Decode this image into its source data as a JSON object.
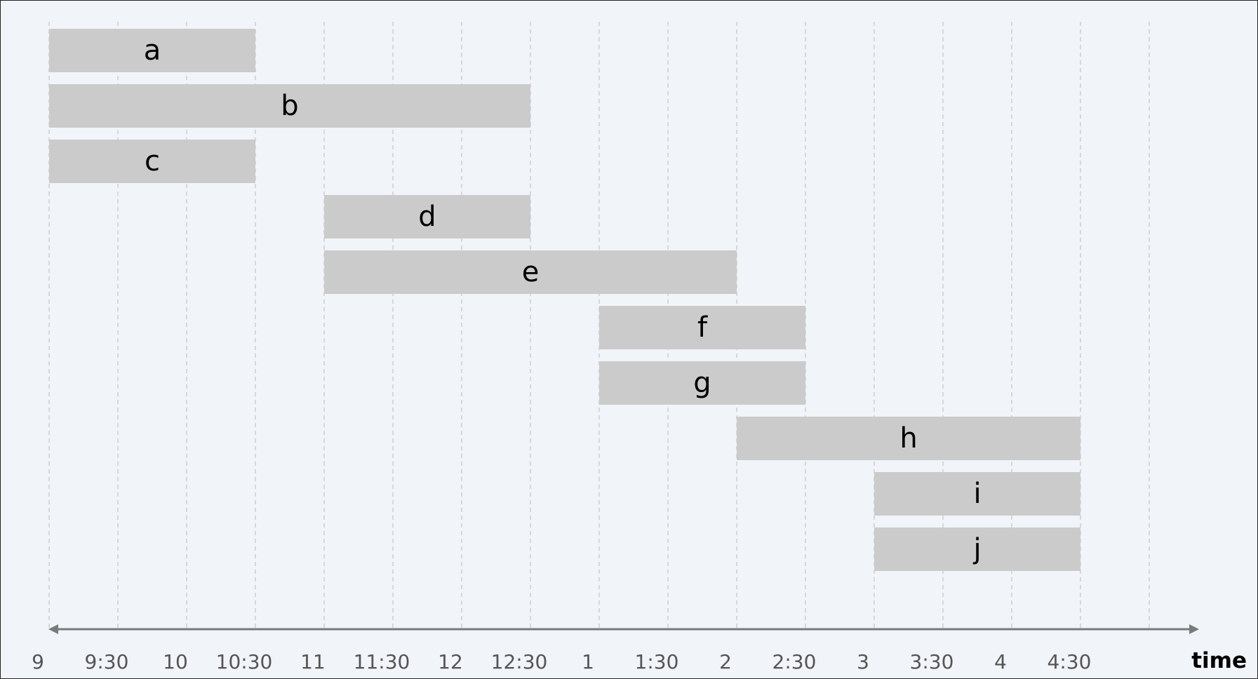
{
  "chart_data": {
    "type": "gantt",
    "axis_label": "time",
    "ticks": [
      "9",
      "9:30",
      "10",
      "10:30",
      "11",
      "11:30",
      "12",
      "12:30",
      "1",
      "1:30",
      "2",
      "2:30",
      "3",
      "3:30",
      "4",
      "4:30"
    ],
    "grid": true,
    "intervals": [
      {
        "label": "a",
        "start": "9:00",
        "end": "10:30"
      },
      {
        "label": "b",
        "start": "9:00",
        "end": "12:30"
      },
      {
        "label": "c",
        "start": "9:00",
        "end": "10:30"
      },
      {
        "label": "d",
        "start": "11:00",
        "end": "12:30"
      },
      {
        "label": "e",
        "start": "11:00",
        "end": "2:00"
      },
      {
        "label": "f",
        "start": "1:00",
        "end": "2:30"
      },
      {
        "label": "g",
        "start": "1:00",
        "end": "2:30"
      },
      {
        "label": "h",
        "start": "2:00",
        "end": "4:30"
      },
      {
        "label": "i",
        "start": "3:00",
        "end": "4:30"
      },
      {
        "label": "j",
        "start": "3:00",
        "end": "4:30"
      }
    ],
    "colors": {
      "bar": "#cbcbcb",
      "background": "#f1f4f8",
      "axis": "#7a7a7a"
    }
  }
}
